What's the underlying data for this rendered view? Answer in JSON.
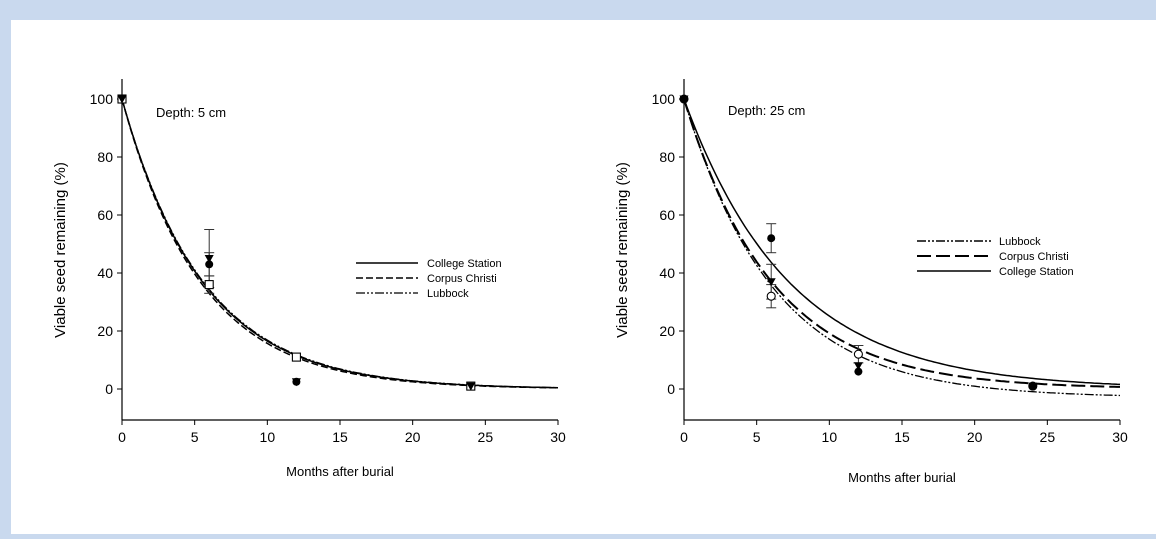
{
  "chart_data": [
    {
      "type": "scatter",
      "annotation": "Depth: 5 cm",
      "xlabel": "Months after burial",
      "ylabel": "Viable seed remaining (%)",
      "xlim": [
        0,
        30
      ],
      "ylim": [
        -10,
        100
      ],
      "xticks": [
        0,
        5,
        10,
        15,
        20,
        25,
        30
      ],
      "yticks": [
        0,
        20,
        40,
        60,
        80,
        100
      ],
      "legend": "right",
      "series": [
        {
          "name": "College Station",
          "line": "solid",
          "marker": "filled-circle",
          "points": [
            {
              "x": 0,
              "y": 100
            },
            {
              "x": 6,
              "y": 43,
              "err": 4
            },
            {
              "x": 12,
              "y": 2.5
            },
            {
              "x": 24,
              "y": 1
            }
          ],
          "curve": {
            "a": 100,
            "k": 0.18
          }
        },
        {
          "name": "Corpus Christi",
          "line": "dashed",
          "marker": "open-square",
          "points": [
            {
              "x": 0,
              "y": 100
            },
            {
              "x": 6,
              "y": 36,
              "err": 3
            },
            {
              "x": 12,
              "y": 11
            },
            {
              "x": 24,
              "y": 1
            }
          ],
          "curve": {
            "a": 100,
            "k": 0.185
          }
        },
        {
          "name": "Lubbock",
          "line": "dash-dot-dot",
          "marker": "filled-triangle",
          "points": [
            {
              "x": 0,
              "y": 100
            },
            {
              "x": 6,
              "y": 45,
              "err": 10
            },
            {
              "x": 12,
              "y": 2.5
            },
            {
              "x": 24,
              "y": 1
            }
          ],
          "curve": {
            "a": 100,
            "k": 0.178
          }
        }
      ]
    },
    {
      "type": "scatter",
      "annotation": "Depth: 25 cm",
      "xlabel": "Months after burial",
      "ylabel": "Viable seed remaining (%)",
      "xlim": [
        0,
        30
      ],
      "ylim": [
        -10,
        100
      ],
      "xticks": [
        0,
        5,
        10,
        15,
        20,
        25,
        30
      ],
      "yticks": [
        0,
        20,
        40,
        60,
        80,
        100
      ],
      "legend": "top-center",
      "series": [
        {
          "name": "Lubbock",
          "line": "dash-dot-dot",
          "marker": "filled-triangle",
          "points": [
            {
              "x": 0,
              "y": 100
            },
            {
              "x": 6,
              "y": 37,
              "err": 6
            },
            {
              "x": 12,
              "y": 8
            },
            {
              "x": 24,
              "y": 1
            }
          ],
          "curve": {
            "a": 103,
            "k": 0.163,
            "c": -3
          }
        },
        {
          "name": "Corpus Christi",
          "line": "long-dashed",
          "marker": "open-circle",
          "points": [
            {
              "x": 0,
              "y": 100
            },
            {
              "x": 6,
              "y": 32,
              "err": 4
            },
            {
              "x": 12,
              "y": 12,
              "err": 3
            },
            {
              "x": 24,
              "y": 1
            }
          ],
          "curve": {
            "a": 100,
            "k": 0.165
          }
        },
        {
          "name": "College Station",
          "line": "solid",
          "marker": "filled-circle",
          "points": [
            {
              "x": 0,
              "y": 100
            },
            {
              "x": 6,
              "y": 52,
              "err": 5
            },
            {
              "x": 12,
              "y": 6
            },
            {
              "x": 24,
              "y": 1
            }
          ],
          "curve": {
            "a": 100,
            "k": 0.138
          }
        }
      ]
    }
  ]
}
